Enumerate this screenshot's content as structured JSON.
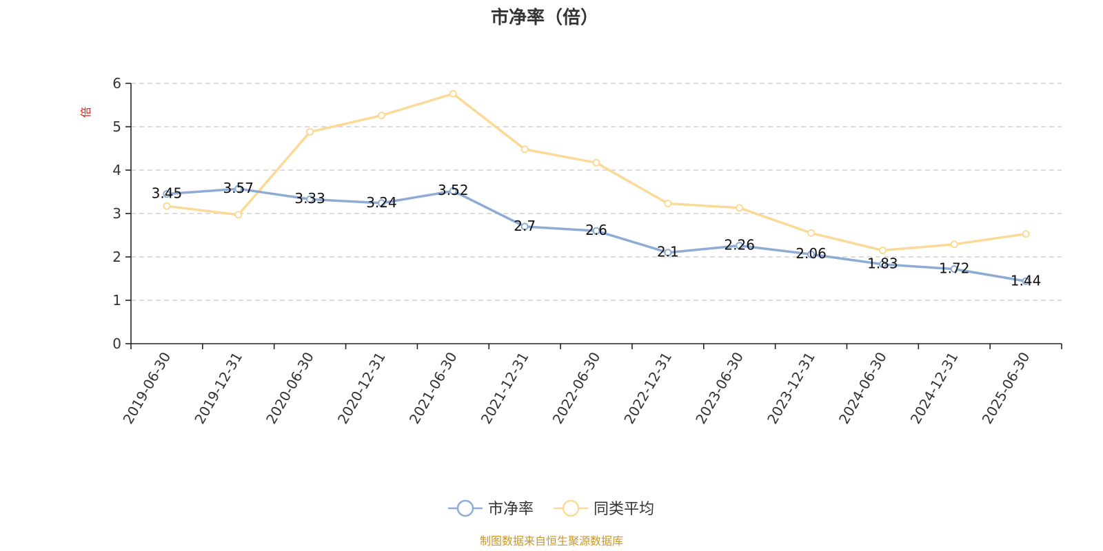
{
  "chart_data": {
    "type": "line",
    "title": "市净率（倍）",
    "ylabel": "倍",
    "categories": [
      "2019-06-30",
      "2019-12-31",
      "2020-06-30",
      "2020-12-31",
      "2021-06-30",
      "2021-12-31",
      "2022-06-30",
      "2022-12-31",
      "2023-06-30",
      "2023-12-31",
      "2024-06-30",
      "2024-12-31",
      "2025-06-30"
    ],
    "ylim": [
      0,
      6
    ],
    "yticks": [
      "0",
      "1",
      "2",
      "3",
      "4",
      "5",
      "6"
    ],
    "grid": true,
    "legend_position": "bottom",
    "series": [
      {
        "name": "市净率",
        "color": "#8eabd6",
        "values": [
          3.45,
          3.57,
          3.33,
          3.24,
          3.52,
          2.7,
          2.6,
          2.1,
          2.26,
          2.06,
          1.83,
          1.72,
          1.44
        ],
        "labels": [
          "3.45",
          "3.57",
          "3.33",
          "3.24",
          "3.52",
          "2.7",
          "2.6",
          "2.1",
          "2.26",
          "2.06",
          "1.83",
          "1.72",
          "1.44"
        ]
      },
      {
        "name": "同类平均",
        "color": "#fbd996",
        "values": [
          3.17,
          2.97,
          4.88,
          5.26,
          5.76,
          4.48,
          4.17,
          3.23,
          3.13,
          2.55,
          2.15,
          2.29,
          2.53
        ]
      }
    ],
    "source": "制图数据来自恒生聚源数据库"
  }
}
